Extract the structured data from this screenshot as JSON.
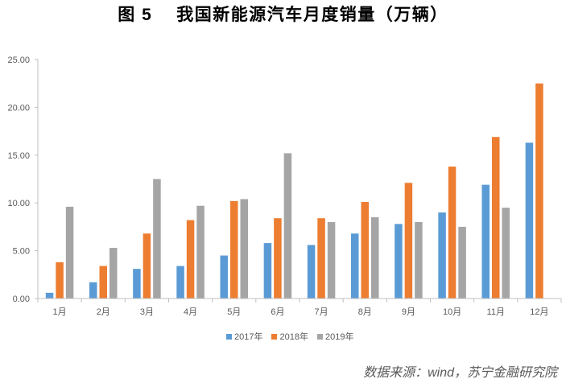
{
  "chart_data": {
    "type": "bar",
    "figure_label": "图 5",
    "title": "我国新能源汽车月度销量（万辆）",
    "categories": [
      "1月",
      "2月",
      "3月",
      "4月",
      "5月",
      "6月",
      "7月",
      "8月",
      "9月",
      "10月",
      "11月",
      "12月"
    ],
    "series": [
      {
        "name": "2017年",
        "color": "#5b9bd5",
        "values": [
          0.6,
          1.7,
          3.1,
          3.4,
          4.5,
          5.8,
          5.6,
          6.8,
          7.8,
          9.0,
          11.9,
          16.3
        ]
      },
      {
        "name": "2018年",
        "color": "#ed7d31",
        "values": [
          3.8,
          3.4,
          6.8,
          8.2,
          10.2,
          8.4,
          8.4,
          10.1,
          12.1,
          13.8,
          16.9,
          22.5
        ]
      },
      {
        "name": "2019年",
        "color": "#a5a5a5",
        "values": [
          9.6,
          5.3,
          12.5,
          9.7,
          10.4,
          15.2,
          8.0,
          8.5,
          8.0,
          7.5,
          9.5,
          null
        ]
      }
    ],
    "ylim": [
      0,
      25
    ],
    "yticks": [
      "0.00",
      "5.00",
      "10.00",
      "15.00",
      "20.00",
      "25.00"
    ],
    "grid": false,
    "legend": "bottom"
  },
  "source": "数据来源：wind，苏宁金融研究院"
}
